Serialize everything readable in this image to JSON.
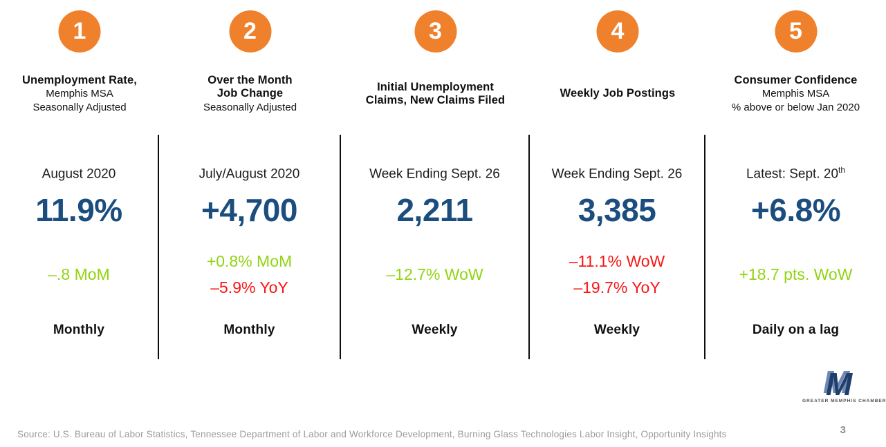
{
  "colors": {
    "orange": "#F0812C",
    "navy": "#1B4E7F",
    "green": "#90D410",
    "red": "#FA1414",
    "logo_front": "#203E6A",
    "logo_bevel": "#6E87B5"
  },
  "indicators": [
    {
      "number": "1",
      "title_lines": [
        {
          "text": "Unemployment Rate,",
          "bold": true
        },
        {
          "text": "Memphis MSA",
          "bold": false
        },
        {
          "text": "Seasonally Adjusted",
          "bold": false
        }
      ],
      "date": "August 2020",
      "date_sup": "",
      "value": "11.9%",
      "changes": [
        {
          "text": "–.8 MoM",
          "color": "green"
        }
      ],
      "frequency": "Monthly"
    },
    {
      "number": "2",
      "title_lines": [
        {
          "text": "Over the Month",
          "bold": true
        },
        {
          "text": "Job Change",
          "bold": true
        },
        {
          "text": "Seasonally Adjusted",
          "bold": false
        }
      ],
      "date": "July/August 2020",
      "date_sup": "",
      "value": "+4,700",
      "changes": [
        {
          "text": "+0.8% MoM",
          "color": "green"
        },
        {
          "text": "–5.9% YoY",
          "color": "red"
        }
      ],
      "frequency": "Monthly"
    },
    {
      "number": "3",
      "title_lines": [
        {
          "text": "Initial Unemployment",
          "bold": true
        },
        {
          "text": "Claims, New Claims Filed",
          "bold": true
        }
      ],
      "date": "Week Ending Sept. 26",
      "date_sup": "",
      "value": "2,211",
      "changes": [
        {
          "text": "–12.7% WoW",
          "color": "green"
        }
      ],
      "frequency": "Weekly"
    },
    {
      "number": "4",
      "title_lines": [
        {
          "text": "Weekly Job Postings",
          "bold": true
        }
      ],
      "date": "Week Ending Sept. 26",
      "date_sup": "",
      "value": "3,385",
      "changes": [
        {
          "text": "–11.1% WoW",
          "color": "red"
        },
        {
          "text": "–19.7% YoY",
          "color": "red"
        }
      ],
      "frequency": "Weekly"
    },
    {
      "number": "5",
      "title_lines": [
        {
          "text": "Consumer Confidence",
          "bold": true
        },
        {
          "text": "Memphis MSA",
          "bold": false
        },
        {
          "text": "% above or below Jan 2020",
          "bold": false
        }
      ],
      "date": "Latest: Sept. 20",
      "date_sup": "th",
      "value": "+6.8%",
      "changes": [
        {
          "text": "+18.7 pts. WoW",
          "color": "green"
        }
      ],
      "frequency": "Daily on a lag"
    }
  ],
  "logo": {
    "letter": "M",
    "caption": "GREATER MEMPHIS CHAMBER"
  },
  "footer": {
    "source_text": "Source: U.S. Bureau of Labor Statistics, Tennessee Department of Labor and Workforce Development, Burning Glass Technologies Labor Insight, Opportunity Insights",
    "page_number": "3"
  }
}
